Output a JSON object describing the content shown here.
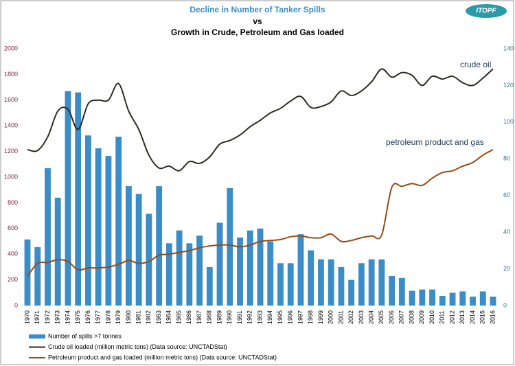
{
  "chart_data": {
    "type": "combo",
    "title": "Decline in Number of Tanker Spills",
    "subtitle_connector": "vs",
    "subtitle": "Growth in Crude, Petroleum and Gas loaded",
    "logo": "ITOPF",
    "annotations": [
      "crude oil",
      "petroleum product and gas"
    ],
    "categories": [
      "1970",
      "1971",
      "1972",
      "1973",
      "1974",
      "1975",
      "1976",
      "1977",
      "1978",
      "1979",
      "1980",
      "1981",
      "1982",
      "1983",
      "1984",
      "1985",
      "1986",
      "1987",
      "1988",
      "1989",
      "1990",
      "1991",
      "1992",
      "1993",
      "1994",
      "1995",
      "1996",
      "1997",
      "1998",
      "1999",
      "2000",
      "2001",
      "2002",
      "2003",
      "2004",
      "2005",
      "2006",
      "2007",
      "2008",
      "2009",
      "2010",
      "2011",
      "2012",
      "2013",
      "2014",
      "2015",
      "2016"
    ],
    "series": [
      {
        "name": "Number of spills >7 tonnes",
        "type": "bar",
        "color": "#3b8dc8",
        "values": [
          515,
          455,
          1070,
          840,
          1670,
          1660,
          1325,
          1225,
          1165,
          1315,
          930,
          870,
          715,
          930,
          485,
          585,
          485,
          545,
          300,
          645,
          915,
          530,
          585,
          600,
          500,
          330,
          330,
          555,
          430,
          360,
          360,
          300,
          200,
          330,
          360,
          360,
          230,
          215,
          115,
          125,
          125,
          75,
          100,
          110,
          70,
          110,
          70
        ]
      },
      {
        "name": "Crude oil loaded (million metric tons) (Data source: UNCTADStat)",
        "type": "line",
        "axis": "y2",
        "color": "#2b2b1e",
        "values": [
          85,
          84.5,
          92,
          106,
          107,
          96,
          110,
          112,
          112,
          121,
          106,
          96,
          82,
          75,
          76,
          73.5,
          78.5,
          77.5,
          81,
          88,
          90,
          93,
          97.5,
          101,
          105,
          107.5,
          111.5,
          114,
          108,
          108.5,
          111,
          117,
          114.5,
          117,
          122,
          129,
          124.5,
          127,
          125.5,
          120,
          125,
          123.5,
          125,
          121.5,
          120,
          124,
          129
        ]
      },
      {
        "name": "Petroleum product and gas loaded (million metric tons) (Data source: UNCTADStat)",
        "type": "line",
        "axis": "y2",
        "color": "#964b12",
        "values": [
          16,
          23,
          23.5,
          25,
          24,
          19.5,
          20.5,
          20.5,
          21,
          22.5,
          24.5,
          23,
          24,
          27.5,
          28,
          29,
          30,
          31.5,
          32.5,
          33,
          33,
          32,
          33,
          35,
          35.5,
          36,
          37.5,
          38,
          37,
          37,
          39,
          35,
          35.5,
          37,
          38,
          38.5,
          64.5,
          65,
          66.5,
          65.5,
          69.5,
          72.5,
          73.5,
          76,
          78,
          82,
          85
        ]
      }
    ],
    "ylim": [
      0,
      2000
    ],
    "yticks": [
      0,
      200,
      400,
      600,
      800,
      1000,
      1200,
      1400,
      1600,
      1800,
      2000
    ],
    "y2lim": [
      0,
      140
    ],
    "y2ticks": [
      0,
      20,
      40,
      60,
      80,
      100,
      120,
      140
    ],
    "grid": false
  }
}
